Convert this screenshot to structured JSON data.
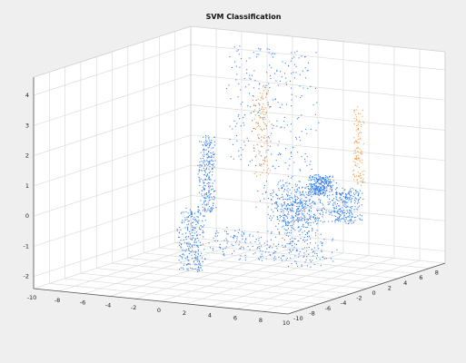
{
  "window": {
    "background": "#efefef"
  },
  "chart_data": {
    "type": "scatter",
    "projection": "3d",
    "title": "SVM Classification",
    "xlabel": "",
    "ylabel": "",
    "zlabel": "",
    "xlim": [
      -10,
      10
    ],
    "ylim": [
      -10,
      10
    ],
    "zlim": [
      -2.4,
      4.6
    ],
    "x_ticks": [
      "-10",
      "-8",
      "-6",
      "-4",
      "-2",
      "0",
      "2",
      "4",
      "6",
      "8",
      "10"
    ],
    "y_ticks": [
      "-10",
      "-8",
      "-6",
      "-4",
      "-2",
      "0",
      "2",
      "4",
      "6",
      "8"
    ],
    "z_ticks": [
      "-2",
      "-1",
      "0",
      "1",
      "2",
      "3",
      "4"
    ],
    "grid": true,
    "legend": "none",
    "colors": {
      "class_a": "#3a82f0",
      "class_b": "#f0a050"
    },
    "series": [
      {
        "color": "class_a",
        "clusters": [
          {
            "x": [
              -6.5,
              -5.5
            ],
            "y": [
              5.0,
              6.0
            ],
            "z": [
              -1.0,
              1.5
            ]
          },
          {
            "x": [
              -2.5,
              -1.0
            ],
            "y": [
              -4.0,
              -2.5
            ],
            "z": [
              -2.0,
              0.0
            ]
          },
          {
            "x": [
              -0.5,
              8.5
            ],
            "y": [
              -4.0,
              -1.0
            ],
            "z": [
              -1.5,
              -0.6
            ]
          },
          {
            "x": [
              -5.0,
              1.5
            ],
            "y": [
              6.0,
              8.0
            ],
            "z": [
              0.5,
              4.5
            ]
          },
          {
            "x": [
              0.0,
              1.6
            ],
            "y": [
              8.5,
              9.5
            ],
            "z": [
              -0.4,
              0.2
            ]
          },
          {
            "x": [
              0.0,
              4.0
            ],
            "y": [
              2.0,
              6.0
            ],
            "z": [
              -0.8,
              0.5
            ]
          },
          {
            "x": [
              4.0,
              7.0
            ],
            "y": [
              -3.0,
              0.0
            ],
            "z": [
              -0.6,
              0.5
            ]
          },
          {
            "x": [
              5.5,
              7.5
            ],
            "y": [
              2.0,
              4.0
            ],
            "z": [
              -0.6,
              0.5
            ]
          }
        ]
      },
      {
        "color": "class_b",
        "clusters": [
          {
            "x": [
              -2.4,
              -1.5
            ],
            "y": [
              5.5,
              6.5
            ],
            "z": [
              0.3,
              3.4
            ]
          },
          {
            "x": [
              4.5,
              5.2
            ],
            "y": [
              7.0,
              7.5
            ],
            "z": [
              0.2,
              2.8
            ]
          }
        ]
      }
    ]
  }
}
